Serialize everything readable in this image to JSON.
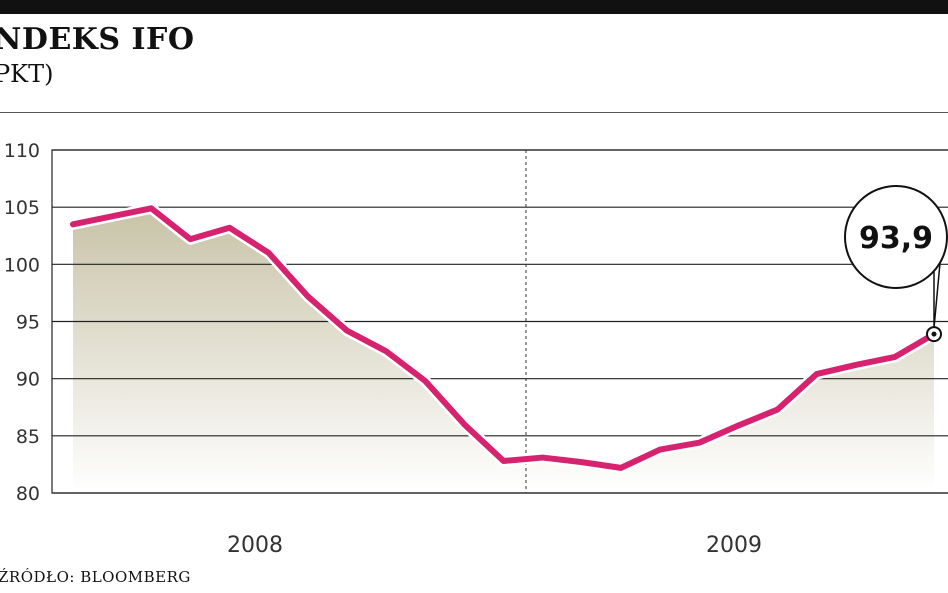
{
  "header": {
    "title": "NDEKS IFO",
    "subtitle": "PKT)"
  },
  "footer": {
    "source": "ŹRÓDŁO: BLOOMBERG"
  },
  "chart_data": {
    "type": "area",
    "title": "NDEKS IFO",
    "ylabel": "PKT)",
    "ylim": [
      80,
      110
    ],
    "yticks": [
      "110",
      "105",
      "100",
      "95",
      "90",
      "85",
      "80"
    ],
    "year_labels": [
      "2008",
      "2009"
    ],
    "series": [
      {
        "values": [
          103.5,
          104.2,
          104.9,
          102.2,
          103.2,
          101.0,
          97.2,
          94.2,
          92.4,
          89.8,
          86.0,
          82.8,
          83.1,
          82.7,
          82.2,
          83.8,
          84.4,
          85.9,
          87.3,
          90.4,
          91.2,
          91.9,
          93.9
        ]
      }
    ],
    "callout": {
      "label": "93,9",
      "value": 93.9
    },
    "colors": {
      "line": "#d6226f",
      "fill_top": "#c5c0a3",
      "fill_bottom": "#ffffff",
      "grid": "#222222"
    },
    "grid": true
  }
}
